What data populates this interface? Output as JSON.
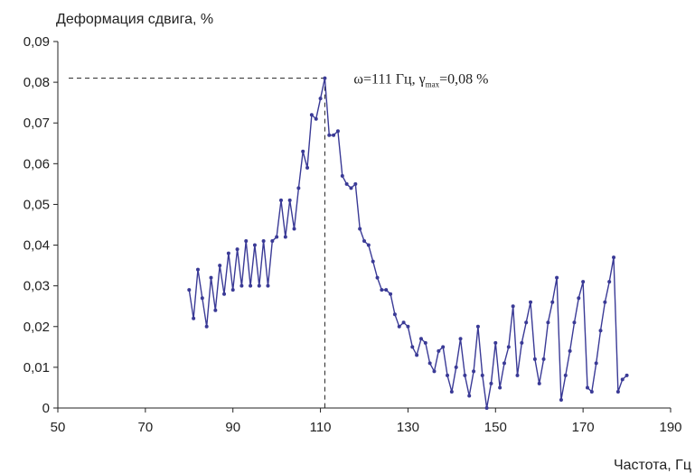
{
  "chart_data": {
    "type": "line",
    "title": "",
    "ylabel": "Деформация сдвига, %",
    "xlabel": "Частота, Гц",
    "xlim": [
      50,
      190
    ],
    "ylim": [
      0,
      0.09
    ],
    "x_ticks": [
      50,
      70,
      90,
      110,
      130,
      150,
      170,
      190
    ],
    "x_tick_labels": [
      "50",
      "70",
      "90",
      "110",
      "130",
      "150",
      "170",
      "190"
    ],
    "y_ticks": [
      0,
      0.01,
      0.02,
      0.03,
      0.04,
      0.05,
      0.06,
      0.07,
      0.08,
      0.09
    ],
    "y_tick_labels": [
      "0",
      "0,01",
      "0,02",
      "0,03",
      "0,04",
      "0,05",
      "0,06",
      "0,07",
      "0,08",
      "0,09"
    ],
    "grid": false,
    "line_color": "#3a3a96",
    "series": [
      {
        "name": "",
        "x": [
          80,
          81,
          82,
          83,
          84,
          85,
          86,
          87,
          88,
          89,
          90,
          91,
          92,
          93,
          94,
          95,
          96,
          97,
          98,
          99,
          100,
          101,
          102,
          103,
          104,
          105,
          106,
          107,
          108,
          109,
          110,
          111,
          112,
          113,
          114,
          115,
          116,
          117,
          118,
          119,
          120,
          121,
          122,
          123,
          124,
          125,
          126,
          127,
          128,
          129,
          130,
          131,
          132,
          133,
          134,
          135,
          136,
          137,
          138,
          139,
          140,
          141,
          142,
          143,
          144,
          145,
          146,
          147,
          148,
          149,
          150,
          151,
          152,
          153,
          154,
          155,
          156,
          157,
          158,
          159,
          160,
          161,
          162,
          163,
          164,
          165,
          166,
          167,
          168,
          169,
          170,
          171,
          172,
          173,
          174,
          175,
          176,
          177,
          178,
          179,
          180
        ],
        "values": [
          0.029,
          0.022,
          0.034,
          0.027,
          0.02,
          0.032,
          0.024,
          0.035,
          0.028,
          0.038,
          0.029,
          0.039,
          0.03,
          0.041,
          0.03,
          0.04,
          0.03,
          0.041,
          0.03,
          0.041,
          0.042,
          0.051,
          0.042,
          0.051,
          0.044,
          0.054,
          0.063,
          0.059,
          0.072,
          0.071,
          0.076,
          0.081,
          0.067,
          0.067,
          0.068,
          0.057,
          0.055,
          0.054,
          0.055,
          0.044,
          0.041,
          0.04,
          0.036,
          0.032,
          0.029,
          0.029,
          0.028,
          0.023,
          0.02,
          0.021,
          0.02,
          0.015,
          0.013,
          0.017,
          0.016,
          0.011,
          0.009,
          0.014,
          0.015,
          0.008,
          0.004,
          0.01,
          0.017,
          0.008,
          0.003,
          0.009,
          0.02,
          0.008,
          0.0,
          0.006,
          0.016,
          0.005,
          0.011,
          0.015,
          0.025,
          0.008,
          0.016,
          0.021,
          0.026,
          0.012,
          0.006,
          0.012,
          0.021,
          0.026,
          0.032,
          0.002,
          0.008,
          0.014,
          0.021,
          0.027,
          0.031,
          0.005,
          0.004,
          0.011,
          0.019,
          0.026,
          0.031,
          0.037,
          0.004,
          0.007,
          0.008
        ]
      }
    ],
    "annotation": {
      "text_main": "ω=111 Гц, γ",
      "text_sub": "max",
      "text_tail": "=0,08 %",
      "x": 111,
      "y": 0.081
    }
  }
}
